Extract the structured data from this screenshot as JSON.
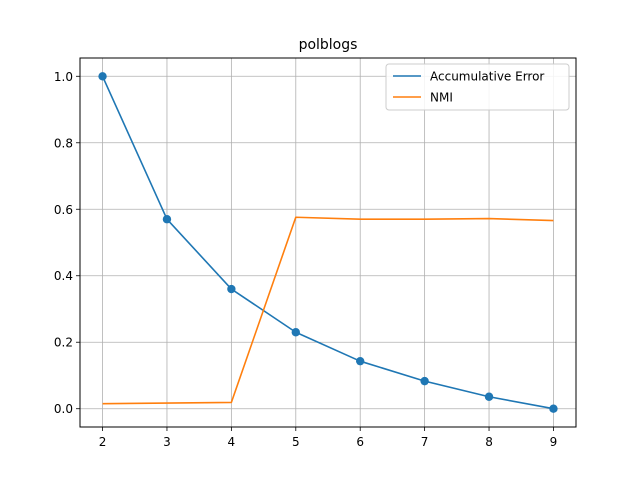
{
  "chart_data": {
    "type": "line",
    "title": "polblogs",
    "xlabel": "",
    "ylabel": "",
    "x": [
      2,
      3,
      4,
      5,
      6,
      7,
      8,
      9
    ],
    "xlim": [
      1.65,
      9.35
    ],
    "ylim": [
      -0.055,
      1.055
    ],
    "xticks": [
      "2",
      "3",
      "4",
      "5",
      "6",
      "7",
      "8",
      "9"
    ],
    "yticks": [
      "0.0",
      "0.2",
      "0.4",
      "0.6",
      "0.8",
      "1.0"
    ],
    "grid": true,
    "legend_position": "upper right",
    "series": [
      {
        "name": "Accumulative Error",
        "color": "#1f77b4",
        "markers": true,
        "values": [
          1.0,
          0.57,
          0.36,
          0.23,
          0.143,
          0.083,
          0.036,
          0.0
        ]
      },
      {
        "name": "NMI",
        "color": "#ff7f0e",
        "markers": false,
        "values": [
          0.015,
          0.017,
          0.019,
          0.576,
          0.57,
          0.57,
          0.572,
          0.566
        ]
      }
    ]
  }
}
